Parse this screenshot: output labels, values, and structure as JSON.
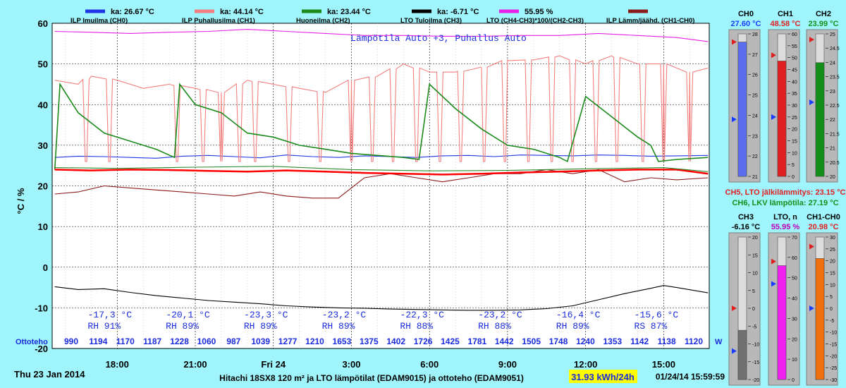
{
  "chart_data": {
    "type": "line",
    "title": "Lämpötila Auto +3, Puhallus Auto",
    "ylabel": "°C / %",
    "ylim": [
      -20,
      60
    ],
    "yticks": [
      -20,
      -10,
      0,
      10,
      20,
      30,
      40,
      50,
      60
    ],
    "xlim": [
      15.5,
      40.75
    ],
    "xticks": [
      {
        "x": 18,
        "label": "18:00"
      },
      {
        "x": 21,
        "label": "21:00"
      },
      {
        "x": 24,
        "label": "Fri 24"
      },
      {
        "x": 27,
        "label": "3:00"
      },
      {
        "x": 30,
        "label": "6:00"
      },
      {
        "x": 33,
        "label": "9:00"
      },
      {
        "x": 36,
        "label": "12:00"
      },
      {
        "x": 39,
        "label": "15:00"
      }
    ],
    "grid": true,
    "legend_position": "top",
    "series": [
      {
        "name": "ILP Imuilma (CH0)",
        "avg_label": "ka: 26.67 °C",
        "color": "#1f35e6",
        "x": [
          15.6,
          16.5,
          17.5,
          18.5,
          19.5,
          20.5,
          21.5,
          22.5,
          23.5,
          24.5,
          25.5,
          26.5,
          27.5,
          28.5,
          29.5,
          30.5,
          31.5,
          32.5,
          33.5,
          34.5,
          35.5,
          36.5,
          37.5,
          38.5,
          39.5,
          40.7
        ],
        "y": [
          27,
          27.3,
          27.2,
          27,
          26.8,
          27.3,
          27.5,
          27.2,
          26.9,
          27.6,
          27.2,
          27,
          27.4,
          27.2,
          27,
          27.4,
          27.5,
          27.2,
          27.6,
          27.5,
          27.4,
          27.6,
          27.5,
          27.3,
          27.4,
          27.5
        ]
      },
      {
        "name": "ILP Puhallusilma (CH1)",
        "avg_label": "ka: 44.14 °C",
        "color": "#f28080",
        "x": [
          15.6,
          16.5,
          17.0,
          18.0,
          19.0,
          20.0,
          21.0,
          22.0,
          23.0,
          24.0,
          25.0,
          26.0,
          27.0,
          28.0,
          29.0,
          30.0,
          31.0,
          32.0,
          33.0,
          34.0,
          35.0,
          36.0,
          37.0,
          38.0,
          39.0,
          40.0,
          40.7
        ],
        "y": [
          46,
          45,
          47,
          46,
          44,
          45,
          44,
          43,
          46,
          45,
          44,
          43,
          46,
          47,
          50,
          48,
          48,
          49,
          51,
          51,
          52,
          50,
          52,
          50,
          50,
          48,
          49
        ],
        "dips_at": [
          16.8,
          17.7,
          20.3,
          21.3,
          22.0,
          22.7,
          23.3,
          24.6,
          25.8,
          27.0,
          27.8,
          28.6,
          29.5,
          30.4,
          31.2,
          32.1,
          32.9,
          33.8,
          34.7,
          35.5,
          36.4,
          37.2,
          38.2,
          39.0,
          40.0
        ],
        "dip_min": 26
      },
      {
        "name": "Huoneilma (CH2)",
        "avg_label": "ka: 23.44 °C",
        "color": "#1a8a1a",
        "x": [
          15.6,
          15.8,
          16.5,
          17.5,
          18.5,
          19.5,
          20.2,
          20.4,
          21.0,
          22.0,
          23.0,
          24.0,
          25.0,
          26.0,
          27.0,
          28.0,
          29.0,
          29.6,
          30.0,
          31.0,
          32.0,
          33.0,
          34.0,
          35.0,
          35.3,
          36.0,
          37.0,
          38.0,
          38.5,
          38.8,
          39.5,
          40.7
        ],
        "y": [
          24,
          45,
          38,
          33,
          31,
          29,
          27,
          45,
          40,
          38,
          33,
          32,
          30,
          29,
          28,
          27.5,
          27,
          26.5,
          45,
          39,
          34,
          30,
          29,
          27,
          26,
          42,
          37,
          32,
          30,
          26,
          26.5,
          27
        ]
      },
      {
        "name": "LTO Tuloilma (CH3)",
        "avg_label": "ka: -6.71 °C",
        "color": "#000000",
        "x": [
          15.6,
          16.5,
          17.5,
          18.5,
          19.5,
          20.5,
          21.5,
          22.5,
          23.5,
          24.5,
          25.5,
          26.5,
          27.5,
          28.5,
          29.5,
          30.5,
          31.5,
          32.5,
          33.5,
          34.5,
          35.5,
          36.5,
          37.5,
          38.5,
          39.0,
          39.5,
          40.7
        ],
        "y": [
          -4.8,
          -5.5,
          -5.3,
          -6.2,
          -7,
          -7.6,
          -8.2,
          -8.6,
          -9,
          -9.5,
          -9.8,
          -10,
          -10.1,
          -10.3,
          -10.4,
          -10.5,
          -10.6,
          -10.6,
          -10.5,
          -10.2,
          -9.5,
          -8,
          -6.5,
          -5.2,
          -4.5,
          -5,
          -6.3
        ]
      },
      {
        "name": "LTO (CH4-CH3)*100/(CH2-CH3)",
        "avg_label": "55.95 %",
        "color": "#e620e6",
        "x": [
          15.6,
          17.0,
          18.5,
          20.0,
          21.5,
          23.0,
          24.5,
          26.0,
          27.5,
          29.0,
          30.5,
          32.0,
          33.5,
          35.0,
          36.5,
          38.0,
          39.5,
          40.7
        ],
        "y": [
          58,
          57.8,
          57.5,
          57.8,
          58,
          58.5,
          58,
          57.5,
          57,
          57,
          56.8,
          56.8,
          57,
          57,
          57.5,
          57,
          56.5,
          55.5
        ]
      },
      {
        "name": "ILP Lämm/jäähd. (CH1-CH0)",
        "avg_label": "",
        "color": "#8b1a1a",
        "x": [
          15.6,
          16.5,
          17.5,
          18.5,
          19.5,
          20.5,
          21.5,
          22.5,
          23.5,
          24.5,
          25.5,
          26.5,
          27.5,
          28.5,
          29.5,
          30.5,
          31.5,
          32.5,
          33.5,
          34.5,
          35.5,
          36.5,
          37.5,
          38.5,
          39.5,
          40.7
        ],
        "y": [
          18,
          18.5,
          20,
          19.5,
          19,
          18.5,
          18,
          17.5,
          18.5,
          17.5,
          17,
          17,
          22,
          23,
          22,
          21,
          22,
          23,
          23,
          24,
          23,
          24,
          21,
          22,
          21.5,
          22
        ]
      },
      {
        "name": "CH5 LTO jälkilämmitys",
        "avg_label": "",
        "color": "#ff0000",
        "x": [
          15.6,
          17.0,
          18.5,
          20.0,
          21.5,
          23.0,
          24.5,
          26.0,
          27.5,
          29.0,
          30.5,
          32.0,
          33.5,
          35.0,
          36.5,
          38.0,
          39.5,
          40.7
        ],
        "y": [
          24,
          23.8,
          24,
          23.9,
          23.7,
          23.5,
          23.8,
          23.5,
          23.2,
          23,
          22.8,
          23,
          23.3,
          23.5,
          23.8,
          24,
          24,
          23
        ]
      },
      {
        "name": "CH6 LKV lämpötila",
        "avg_label": "",
        "color": "#2a8a2a",
        "x": [
          15.6,
          18.0,
          21.0,
          24.0,
          27.0,
          30.0,
          33.0,
          36.0,
          39.0,
          40.7
        ],
        "y": [
          24.5,
          24.3,
          24.6,
          24.8,
          24,
          23.7,
          23.8,
          24.2,
          24.5,
          23.5
        ]
      }
    ],
    "annotations_row1": [
      "-17,3 °C",
      "-20,1 °C",
      "-23,3 °C",
      "-23,2 °C",
      "-22,3 °C",
      "-23,2 °C",
      "-16,4 °C",
      "-15,6 °C"
    ],
    "annotations_row2": [
      "RH 91%",
      "RH 89%",
      "RH 89%",
      "RH 89%",
      "RH 88%",
      "RH 88%",
      "RH 89%",
      "RS 87%"
    ],
    "annotation_x": [
      17.5,
      20.5,
      23.5,
      26.5,
      29.5,
      32.5,
      35.5,
      38.5
    ],
    "ottoteho_label": "Ottoteho",
    "ottoteho_unit": "W",
    "ottoteho_values": [
      "990",
      "1194",
      "1170",
      "1187",
      "1228",
      "1060",
      "987",
      "1039",
      "1277",
      "1210",
      "1653",
      "1375",
      "1402",
      "1726",
      "1425",
      "1781",
      "1442",
      "1505",
      "1748",
      "1240",
      "1353",
      "1142",
      "1138",
      "1120"
    ]
  },
  "footer": {
    "date": "Thu 23 Jan 2014",
    "title": "Hitachi 18SX8 120 m² ja LTO lämpötilat (EDAM9015) ja ottoteho (EDAM9051)",
    "energy": "31.93 kWh/24h",
    "timestamp": "01/24/14 15:59:59"
  },
  "gauges_top": [
    {
      "name": "CH0",
      "value": "27.60 °C",
      "color": "#5b6ef0",
      "value_color": "#1a3cff",
      "min": 21,
      "max": 28,
      "step": 1,
      "fill_value": 27.6,
      "marker_high": 27.6,
      "marker_low": 23.8
    },
    {
      "name": "CH1",
      "value": "48.58 °C",
      "color": "#e02020",
      "value_color": "#e02020",
      "min": 0,
      "max": 60,
      "step": 5,
      "fill_value": 48.58,
      "marker_high": 51,
      "marker_low": 25
    },
    {
      "name": "CH2",
      "value": "23.99 °C",
      "color": "#12901a",
      "value_color": "#12901a",
      "min": 20,
      "max": 25,
      "step": 0.5,
      "fill_value": 23.99,
      "marker_high": 24.8,
      "marker_low": 22.6
    }
  ],
  "gauge_info": {
    "ch5": "CH5, LTO jälkilämmitys: 23.15 °C",
    "ch6": "CH6, LKV lämpötila: 27.19 °C",
    "ch5_color": "#e02020",
    "ch6_color": "#12901a"
  },
  "gauges_bottom": [
    {
      "name": "CH3",
      "value": "-6.16 °C",
      "color": "#707070",
      "value_color": "#000000",
      "min": -20,
      "max": 20,
      "step": 5,
      "fill_value": -6.16,
      "marker_high": 0,
      "marker_low": -12
    },
    {
      "name": "LTO, n",
      "value": "55.95 %",
      "color": "#f020f0",
      "value_color": "#c000c0",
      "min": 0,
      "max": 70,
      "step": 10,
      "fill_value": 55.95,
      "marker_high": 58,
      "marker_low": 47
    },
    {
      "name": "CH1-CH0",
      "value": "20.98 °C",
      "color": "#f07010",
      "value_color": "#e02020",
      "min": -30,
      "max": 30,
      "step": 5,
      "fill_value": 20.98,
      "marker_high": 26,
      "marker_low": 0
    }
  ]
}
